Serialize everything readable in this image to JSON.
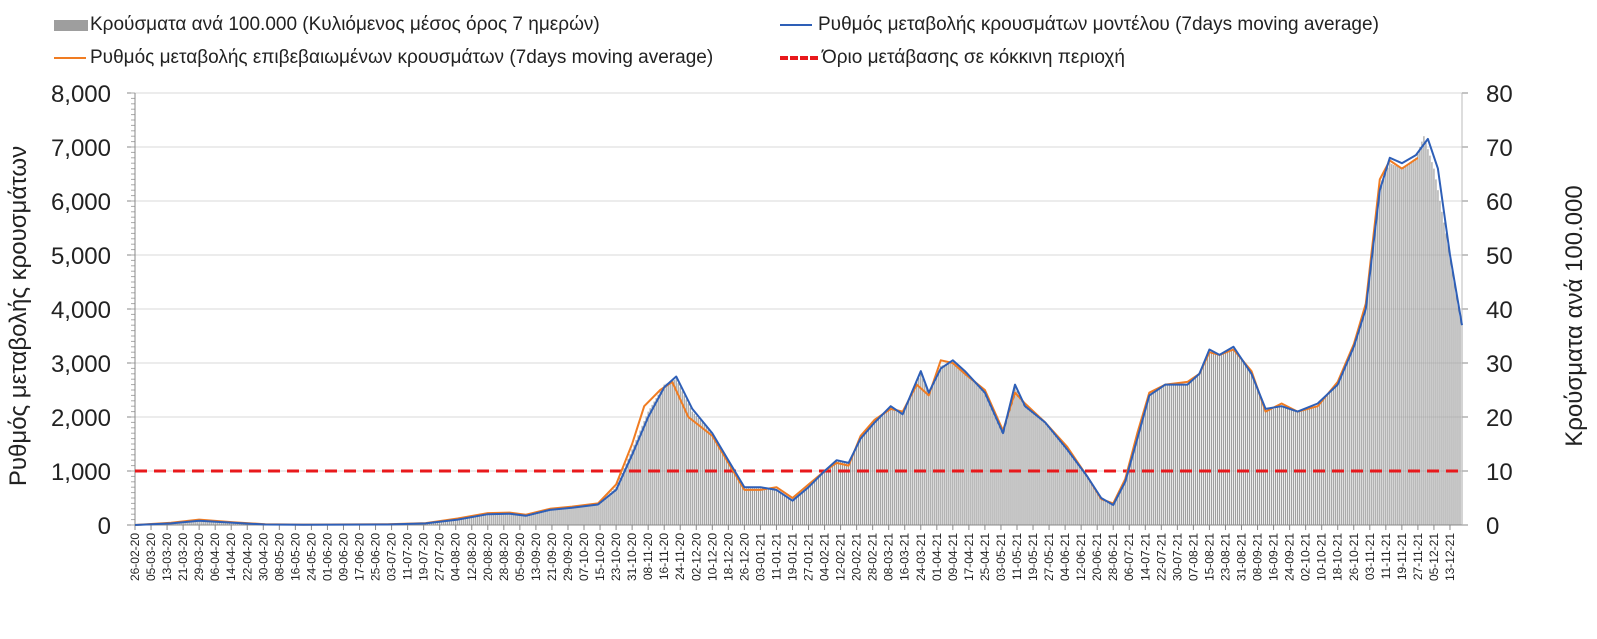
{
  "legend": {
    "bars": "Κρούσματα ανά 100.000 (Κυλιόμενος μέσος όρος 7 ημερών)",
    "model": "Ρυθμός μεταβολής κρουσμάτων μοντέλου (7days moving average)",
    "confirmed": "Ρυθμός μεταβολής επιβεβαιωμένων κρουσμάτων (7days moving average)",
    "threshold": "Όριο μετάβασης σε κόκκινη περιοχή"
  },
  "chart_data": {
    "type": "bar",
    "ylabel": "Ρυθμός μεταβολής κρουσμάτων",
    "y2label": "Κρούσματα ανά 100.000",
    "ylim": [
      0,
      8000
    ],
    "y2lim": [
      0,
      80
    ],
    "yticks": [
      "0",
      "1,000",
      "2,000",
      "3,000",
      "4,000",
      "5,000",
      "6,000",
      "7,000",
      "8,000"
    ],
    "y2ticks": [
      "0",
      "10",
      "20",
      "30",
      "40",
      "50",
      "60",
      "70",
      "80"
    ],
    "grid": true,
    "legend_position": "top",
    "x_start": "26-02-20",
    "x_end": "19-12-21",
    "x_labels": [
      "26-02-20",
      "05-03-20",
      "13-03-20",
      "21-03-20",
      "29-03-20",
      "06-04-20",
      "14-04-20",
      "22-04-20",
      "30-04-20",
      "08-05-20",
      "16-05-20",
      "24-05-20",
      "01-06-20",
      "09-06-20",
      "17-06-20",
      "25-06-20",
      "03-07-20",
      "11-07-20",
      "19-07-20",
      "27-07-20",
      "04-08-20",
      "12-08-20",
      "20-08-20",
      "28-08-20",
      "05-09-20",
      "13-09-20",
      "21-09-20",
      "29-09-20",
      "07-10-20",
      "15-10-20",
      "23-10-20",
      "31-10-20",
      "08-11-20",
      "16-11-20",
      "24-11-20",
      "02-12-20",
      "10-12-20",
      "18-12-20",
      "26-12-20",
      "03-01-21",
      "11-01-21",
      "19-01-21",
      "27-01-21",
      "04-02-21",
      "12-02-21",
      "20-02-21",
      "28-02-21",
      "08-03-21",
      "16-03-21",
      "24-03-21",
      "01-04-21",
      "09-04-21",
      "17-04-21",
      "25-04-21",
      "03-05-21",
      "11-05-21",
      "19-05-21",
      "27-05-21",
      "04-06-21",
      "12-06-21",
      "20-06-21",
      "28-06-21",
      "06-07-21",
      "14-07-21",
      "22-07-21",
      "30-07-21",
      "07-08-21",
      "15-08-21",
      "23-08-21",
      "31-08-21",
      "08-09-21",
      "16-09-21",
      "24-09-21",
      "02-10-21",
      "10-10-21",
      "18-10-21",
      "26-10-21",
      "03-11-21",
      "11-11-21",
      "19-11-21",
      "27-11-21",
      "05-12-21",
      "13-12-21"
    ],
    "series": [
      {
        "name": "Ρυθμός μεταβολής κρουσμάτων μοντέλου (7days moving average)",
        "type": "line",
        "color": "#2e5fb7",
        "points": [
          [
            "26-02-20",
            0
          ],
          [
            "15-03-20",
            30
          ],
          [
            "29-03-20",
            80
          ],
          [
            "15-04-20",
            40
          ],
          [
            "01-05-20",
            10
          ],
          [
            "20-05-20",
            5
          ],
          [
            "01-07-20",
            10
          ],
          [
            "20-07-20",
            30
          ],
          [
            "05-08-20",
            100
          ],
          [
            "20-08-20",
            200
          ],
          [
            "31-08-20",
            210
          ],
          [
            "08-09-20",
            170
          ],
          [
            "20-09-20",
            280
          ],
          [
            "01-10-20",
            320
          ],
          [
            "14-10-20",
            380
          ],
          [
            "23-10-20",
            650
          ],
          [
            "31-10-20",
            1300
          ],
          [
            "08-11-20",
            2000
          ],
          [
            "16-11-20",
            2550
          ],
          [
            "22-11-20",
            2750
          ],
          [
            "30-11-20",
            2150
          ],
          [
            "10-12-20",
            1700
          ],
          [
            "18-12-20",
            1200
          ],
          [
            "26-12-20",
            700
          ],
          [
            "03-01-21",
            700
          ],
          [
            "11-01-21",
            650
          ],
          [
            "19-01-21",
            450
          ],
          [
            "27-01-21",
            700
          ],
          [
            "04-02-21",
            1000
          ],
          [
            "10-02-21",
            1200
          ],
          [
            "16-02-21",
            1150
          ],
          [
            "22-02-21",
            1600
          ],
          [
            "01-03-21",
            1900
          ],
          [
            "09-03-21",
            2200
          ],
          [
            "15-03-21",
            2050
          ],
          [
            "20-03-21",
            2500
          ],
          [
            "24-03-21",
            2850
          ],
          [
            "28-03-21",
            2450
          ],
          [
            "03-04-21",
            2900
          ],
          [
            "09-04-21",
            3050
          ],
          [
            "15-04-21",
            2850
          ],
          [
            "25-04-21",
            2450
          ],
          [
            "04-05-21",
            1700
          ],
          [
            "10-05-21",
            2600
          ],
          [
            "15-05-21",
            2200
          ],
          [
            "25-05-21",
            1900
          ],
          [
            "05-06-21",
            1400
          ],
          [
            "15-06-21",
            900
          ],
          [
            "22-06-21",
            500
          ],
          [
            "28-06-21",
            370
          ],
          [
            "04-07-21",
            800
          ],
          [
            "10-07-21",
            1600
          ],
          [
            "16-07-21",
            2400
          ],
          [
            "24-07-21",
            2600
          ],
          [
            "04-08-21",
            2600
          ],
          [
            "10-08-21",
            2800
          ],
          [
            "15-08-21",
            3250
          ],
          [
            "20-08-21",
            3150
          ],
          [
            "27-08-21",
            3300
          ],
          [
            "05-09-21",
            2800
          ],
          [
            "12-09-21",
            2150
          ],
          [
            "20-09-21",
            2200
          ],
          [
            "28-09-21",
            2100
          ],
          [
            "08-10-21",
            2250
          ],
          [
            "18-10-21",
            2600
          ],
          [
            "26-10-21",
            3300
          ],
          [
            "01-11-21",
            4000
          ],
          [
            "08-11-21",
            6200
          ],
          [
            "13-11-21",
            6800
          ],
          [
            "19-11-21",
            6700
          ],
          [
            "26-11-21",
            6850
          ],
          [
            "02-12-21",
            7150
          ],
          [
            "07-12-21",
            6600
          ],
          [
            "13-12-21",
            5000
          ],
          [
            "19-12-21",
            3700
          ]
        ]
      },
      {
        "name": "Ρυθμός μεταβολής επιβεβαιωμένων κρουσμάτων (7days moving average)",
        "type": "line",
        "color": "#f07c22",
        "points": [
          [
            "26-02-20",
            0
          ],
          [
            "15-03-20",
            40
          ],
          [
            "29-03-20",
            100
          ],
          [
            "15-04-20",
            50
          ],
          [
            "01-05-20",
            15
          ],
          [
            "20-05-20",
            8
          ],
          [
            "01-07-20",
            15
          ],
          [
            "20-07-20",
            35
          ],
          [
            "05-08-20",
            120
          ],
          [
            "20-08-20",
            220
          ],
          [
            "31-08-20",
            230
          ],
          [
            "08-09-20",
            190
          ],
          [
            "20-09-20",
            300
          ],
          [
            "01-10-20",
            340
          ],
          [
            "14-10-20",
            400
          ],
          [
            "23-10-20",
            750
          ],
          [
            "31-10-20",
            1500
          ],
          [
            "06-11-20",
            2200
          ],
          [
            "14-11-20",
            2500
          ],
          [
            "20-11-20",
            2650
          ],
          [
            "28-11-20",
            2000
          ],
          [
            "10-12-20",
            1650
          ],
          [
            "18-12-20",
            1150
          ],
          [
            "26-12-20",
            650
          ],
          [
            "03-01-21",
            650
          ],
          [
            "11-01-21",
            700
          ],
          [
            "19-01-21",
            500
          ],
          [
            "27-01-21",
            750
          ],
          [
            "04-02-21",
            1000
          ],
          [
            "10-02-21",
            1150
          ],
          [
            "16-02-21",
            1100
          ],
          [
            "22-02-21",
            1650
          ],
          [
            "01-03-21",
            1950
          ],
          [
            "09-03-21",
            2150
          ],
          [
            "15-03-21",
            2100
          ],
          [
            "22-03-21",
            2600
          ],
          [
            "28-03-21",
            2400
          ],
          [
            "03-04-21",
            3050
          ],
          [
            "09-04-21",
            3000
          ],
          [
            "15-04-21",
            2800
          ],
          [
            "25-04-21",
            2500
          ],
          [
            "04-05-21",
            1750
          ],
          [
            "10-05-21",
            2450
          ],
          [
            "15-05-21",
            2250
          ],
          [
            "25-05-21",
            1900
          ],
          [
            "05-06-21",
            1450
          ],
          [
            "15-06-21",
            900
          ],
          [
            "22-06-21",
            480
          ],
          [
            "28-06-21",
            400
          ],
          [
            "04-07-21",
            850
          ],
          [
            "10-07-21",
            1700
          ],
          [
            "16-07-21",
            2450
          ],
          [
            "24-07-21",
            2600
          ],
          [
            "04-08-21",
            2650
          ],
          [
            "10-08-21",
            2800
          ],
          [
            "15-08-21",
            3200
          ],
          [
            "20-08-21",
            3150
          ],
          [
            "27-08-21",
            3250
          ],
          [
            "05-09-21",
            2850
          ],
          [
            "12-09-21",
            2100
          ],
          [
            "20-09-21",
            2250
          ],
          [
            "28-09-21",
            2100
          ],
          [
            "08-10-21",
            2200
          ],
          [
            "18-10-21",
            2650
          ],
          [
            "26-10-21",
            3350
          ],
          [
            "01-11-21",
            4100
          ],
          [
            "08-11-21",
            6400
          ],
          [
            "13-11-21",
            6750
          ],
          [
            "19-11-21",
            6600
          ],
          [
            "27-11-21",
            6800
          ]
        ]
      },
      {
        "name": "Κρούσματα ανά 100.000 (Κυλιόμενος μέσος όρος 7 ημερών)",
        "type": "bar",
        "color": "#9e9e9e",
        "axis": "right",
        "points": [
          [
            "26-02-20",
            0
          ],
          [
            "15-03-20",
            0.3
          ],
          [
            "29-03-20",
            0.8
          ],
          [
            "15-04-20",
            0.4
          ],
          [
            "01-05-20",
            0.1
          ],
          [
            "20-05-20",
            0.05
          ],
          [
            "01-07-20",
            0.1
          ],
          [
            "20-07-20",
            0.3
          ],
          [
            "05-08-20",
            1
          ],
          [
            "20-08-20",
            2
          ],
          [
            "31-08-20",
            2.1
          ],
          [
            "08-09-20",
            1.7
          ],
          [
            "20-09-20",
            2.9
          ],
          [
            "01-10-20",
            3.3
          ],
          [
            "14-10-20",
            3.9
          ],
          [
            "23-10-20",
            7
          ],
          [
            "31-10-20",
            14
          ],
          [
            "08-11-20",
            21
          ],
          [
            "16-11-20",
            26
          ],
          [
            "22-11-20",
            27
          ],
          [
            "30-11-20",
            21
          ],
          [
            "10-12-20",
            17
          ],
          [
            "18-12-20",
            12
          ],
          [
            "26-12-20",
            6.8
          ],
          [
            "03-01-21",
            6.8
          ],
          [
            "11-01-21",
            6.6
          ],
          [
            "19-01-21",
            4.6
          ],
          [
            "27-01-21",
            7.2
          ],
          [
            "04-02-21",
            10
          ],
          [
            "10-02-21",
            12
          ],
          [
            "16-02-21",
            11.5
          ],
          [
            "22-02-21",
            16
          ],
          [
            "01-03-21",
            19
          ],
          [
            "09-03-21",
            22
          ],
          [
            "15-03-21",
            20.5
          ],
          [
            "20-03-21",
            25
          ],
          [
            "24-03-21",
            28
          ],
          [
            "28-03-21",
            24.5
          ],
          [
            "03-04-21",
            29.5
          ],
          [
            "09-04-21",
            30
          ],
          [
            "15-04-21",
            28.5
          ],
          [
            "25-04-21",
            24.5
          ],
          [
            "04-05-21",
            17
          ],
          [
            "10-05-21",
            25.5
          ],
          [
            "15-05-21",
            22
          ],
          [
            "25-05-21",
            19
          ],
          [
            "05-06-21",
            14
          ],
          [
            "15-06-21",
            9
          ],
          [
            "22-06-21",
            5
          ],
          [
            "28-06-21",
            3.8
          ],
          [
            "04-07-21",
            8
          ],
          [
            "10-07-21",
            16
          ],
          [
            "16-07-21",
            24
          ],
          [
            "24-07-21",
            26
          ],
          [
            "04-08-21",
            26
          ],
          [
            "10-08-21",
            28
          ],
          [
            "15-08-21",
            32
          ],
          [
            "20-08-21",
            31.5
          ],
          [
            "27-08-21",
            32.5
          ],
          [
            "05-09-21",
            28
          ],
          [
            "12-09-21",
            21
          ],
          [
            "20-09-21",
            22
          ],
          [
            "28-09-21",
            21
          ],
          [
            "08-10-21",
            22
          ],
          [
            "18-10-21",
            26
          ],
          [
            "26-10-21",
            33
          ],
          [
            "01-11-21",
            40
          ],
          [
            "08-11-21",
            63
          ],
          [
            "13-11-21",
            67
          ],
          [
            "19-11-21",
            66
          ],
          [
            "26-11-21",
            68
          ],
          [
            "30-11-21",
            72
          ],
          [
            "05-12-21",
            66
          ],
          [
            "13-12-21",
            50
          ],
          [
            "19-12-21",
            37
          ]
        ]
      }
    ],
    "threshold": {
      "value": 1000,
      "color": "#e8191c",
      "style": "dashed"
    }
  }
}
